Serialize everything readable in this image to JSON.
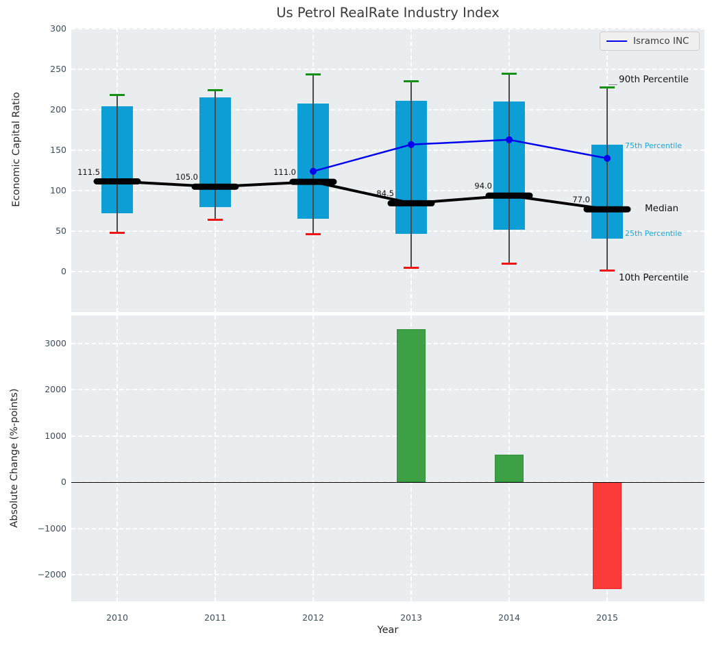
{
  "title": "Us Petrol RealRate Industry Index",
  "legend": {
    "label": "Isramco INC"
  },
  "colors": {
    "plot_bg": "#e9edef",
    "grid": "#ffffff",
    "tick_label": "#3d4c60",
    "title_color": "#3a3a3a",
    "axis_label": "#262626",
    "box_fill": "#0d9ed6",
    "whisker": "#4a4a4a",
    "cap_90": "#149114",
    "cap_10": "#ee1515",
    "median": "#000000",
    "company_line": "#0000ee",
    "annotation_dark": "#111111",
    "annotation_cyan": "#1ea5d9",
    "bar_positive": "#3da044",
    "bar_positive_edge": "#2f8f38",
    "bar_negative": "#fb3a3a",
    "bar_negative_edge": "#ef2929",
    "legend_bg": "#f0f0f0",
    "legend_border": "#cccccc",
    "zero_line": "#000000",
    "leader": "#8a8a8a"
  },
  "chart_data": [
    {
      "type": "box-percentile",
      "title": "Us Petrol RealRate Industry Index",
      "ylabel": "Economic Capital Ratio",
      "categories": [
        "2010",
        "2011",
        "2012",
        "2013",
        "2014",
        "2015"
      ],
      "ylim": [
        -50,
        301
      ],
      "yticks": {
        "values": [
          300,
          250,
          200,
          150,
          100,
          50,
          0
        ],
        "labels": [
          "300",
          "250",
          "200",
          "150",
          "100",
          "50",
          "0"
        ]
      },
      "grid": true,
      "legend_position": "upper right",
      "percentiles": {
        "p90": [
          218,
          224,
          244,
          235,
          245,
          228
        ],
        "p75": [
          204,
          215,
          208,
          211,
          210,
          157
        ],
        "median": [
          111.5,
          105.0,
          111.0,
          84.5,
          94.0,
          77.0
        ],
        "p25": [
          72,
          80,
          65,
          47,
          52,
          41
        ],
        "p10": [
          48,
          64,
          46,
          5,
          10,
          1
        ]
      },
      "median_labels": [
        "111.5",
        "105.0",
        "111.0",
        "84.5",
        "94.0",
        "77.0"
      ],
      "series": [
        {
          "name": "Isramco INC",
          "start_index": 2,
          "values": [
            124,
            157,
            163,
            140
          ]
        }
      ],
      "annotations": [
        {
          "label": "90th Percentile",
          "value": 236,
          "style": "dark",
          "x": 799,
          "leader": true
        },
        {
          "label": "75th Percentile",
          "value": 154,
          "style": "cyan",
          "x": 808
        },
        {
          "label": "Median",
          "value": 76,
          "style": "dark",
          "x": 837
        },
        {
          "label": "25th Percentile",
          "value": 46,
          "style": "cyan",
          "x": 808
        },
        {
          "label": "10th Percentile",
          "value": -9,
          "style": "dark",
          "x": 799
        }
      ]
    },
    {
      "type": "bar",
      "ylabel": "Absolute Change (%-points)",
      "xlabel": "Year",
      "categories": [
        "2010",
        "2011",
        "2012",
        "2013",
        "2014",
        "2015"
      ],
      "values": [
        null,
        null,
        null,
        3300,
        600,
        -2300
      ],
      "ylim": [
        -2570,
        3600
      ],
      "yticks": {
        "values": [
          3000,
          2000,
          1000,
          0,
          -1000,
          -2000
        ],
        "labels": [
          "3000",
          "2000",
          "1000",
          "0",
          "−1000",
          "−2000"
        ]
      },
      "grid": true
    }
  ]
}
